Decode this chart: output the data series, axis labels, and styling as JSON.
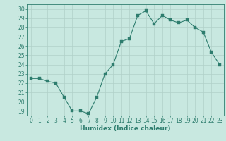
{
  "x": [
    0,
    1,
    2,
    3,
    4,
    5,
    6,
    7,
    8,
    9,
    10,
    11,
    12,
    13,
    14,
    15,
    16,
    17,
    18,
    19,
    20,
    21,
    22,
    23
  ],
  "y": [
    22.5,
    22.5,
    22.2,
    22.0,
    20.5,
    19.0,
    19.0,
    18.7,
    20.5,
    23.0,
    24.0,
    26.5,
    26.8,
    29.3,
    29.8,
    28.4,
    29.3,
    28.8,
    28.5,
    28.8,
    28.0,
    27.5,
    25.3,
    24.0
  ],
  "xlabel": "Humidex (Indice chaleur)",
  "xlim": [
    -0.5,
    23.5
  ],
  "ylim": [
    18.5,
    30.5
  ],
  "yticks": [
    19,
    20,
    21,
    22,
    23,
    24,
    25,
    26,
    27,
    28,
    29,
    30
  ],
  "xticks": [
    0,
    1,
    2,
    3,
    4,
    5,
    6,
    7,
    8,
    9,
    10,
    11,
    12,
    13,
    14,
    15,
    16,
    17,
    18,
    19,
    20,
    21,
    22,
    23
  ],
  "line_color": "#2e7d6e",
  "marker_color": "#2e7d6e",
  "bg_color": "#c8e8e0",
  "grid_color": "#b0d0c8",
  "axes_color": "#2e7d6e",
  "label_color": "#2e7d6e",
  "tick_color": "#2e7d6e",
  "xlabel_fontsize": 6.5,
  "tick_fontsize": 5.5
}
